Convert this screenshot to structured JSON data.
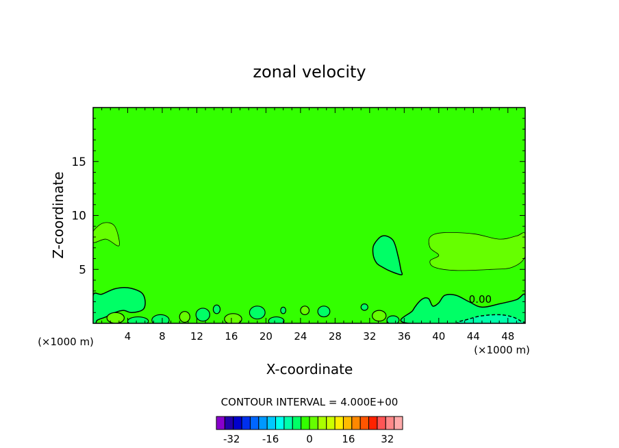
{
  "chart_data": {
    "type": "heatmap",
    "title": "zonal velocity",
    "xlabel": "X-coordinate",
    "ylabel": "Z-coordinate",
    "x_unit": "(×1000 m)",
    "xlim": [
      0,
      50
    ],
    "ylim": [
      0,
      20
    ],
    "x_ticks": [
      4,
      8,
      12,
      16,
      20,
      24,
      28,
      32,
      36,
      40,
      44,
      48
    ],
    "y_ticks": [
      5,
      10,
      15
    ],
    "contour_interval_label": "CONTOUR INTERVAL = 4.000E+00",
    "contour_labels": [
      "0.00"
    ],
    "colorbar": {
      "min": -36,
      "max": 36,
      "step": 4,
      "tick_values": [
        -32,
        -16,
        0,
        16,
        32
      ],
      "tick_labels": [
        "-32",
        "-16",
        "0",
        "16",
        "32"
      ],
      "colors": [
        "#8800cc",
        "#2200aa",
        "#0000cc",
        "#0030ee",
        "#0066ff",
        "#0099ff",
        "#00c8ff",
        "#00ffee",
        "#00ffaa",
        "#00ff66",
        "#33ff00",
        "#66ff00",
        "#aaff00",
        "#ccff00",
        "#ffee00",
        "#ffbb00",
        "#ff8800",
        "#ff5500",
        "#ff2200",
        "#ff5555",
        "#ff8888",
        "#ffaaaa"
      ]
    },
    "background_value_range": [
      0,
      4
    ],
    "regions": [
      {
        "label": "positive 4-8",
        "range": [
          4,
          8
        ],
        "color": "#66ff00",
        "shape": [
          [
            0,
            8.5
          ],
          [
            1.2,
            9.3
          ],
          [
            2.5,
            9.0
          ],
          [
            3,
            7.2
          ],
          [
            1.5,
            7.8
          ],
          [
            0,
            7.5
          ]
        ]
      },
      {
        "label": "positive 4-8",
        "range": [
          4,
          8
        ],
        "color": "#66ff00",
        "shape": [
          [
            39,
            8.0
          ],
          [
            40.5,
            8.4
          ],
          [
            44,
            8.3
          ],
          [
            47,
            7.8
          ],
          [
            49,
            8.1
          ],
          [
            50,
            8.3
          ],
          [
            50,
            6.2
          ],
          [
            48.5,
            5.2
          ],
          [
            46,
            5.0
          ],
          [
            42,
            4.9
          ],
          [
            39.5,
            5.2
          ],
          [
            39,
            5.8
          ],
          [
            40,
            6.3
          ],
          [
            39,
            7.0
          ]
        ]
      },
      {
        "label": "negative -4-0",
        "range": [
          -4,
          0
        ],
        "color": "#00ff66",
        "shape": [
          [
            32.5,
            7.3
          ],
          [
            33.5,
            8.1
          ],
          [
            34.7,
            7.7
          ],
          [
            35.3,
            6.2
          ],
          [
            35.6,
            5.0
          ],
          [
            35.7,
            4.5
          ],
          [
            34.5,
            4.8
          ],
          [
            33.5,
            5.2
          ],
          [
            32.8,
            5.6
          ],
          [
            32.4,
            6.4
          ]
        ]
      },
      {
        "label": "negative -4-0",
        "range": [
          -4,
          0
        ],
        "color": "#00ff66",
        "shape": [
          [
            0,
            0
          ],
          [
            0,
            2.6
          ],
          [
            1,
            2.7
          ],
          [
            2.5,
            3.2
          ],
          [
            4,
            3.3
          ],
          [
            5.5,
            2.9
          ],
          [
            6,
            2.2
          ],
          [
            5.8,
            1.3
          ],
          [
            4.5,
            1.0
          ],
          [
            3.5,
            1.2
          ],
          [
            2.5,
            1.0
          ],
          [
            1.5,
            0.6
          ],
          [
            0.5,
            0.3
          ],
          [
            0.3,
            0
          ]
        ]
      },
      {
        "label": "negative -4-0",
        "range": [
          -4,
          0
        ],
        "color": "#00ff66",
        "shape": [
          [
            36.5,
            0
          ],
          [
            37,
            1.2
          ],
          [
            38,
            2.2
          ],
          [
            38.8,
            2.3
          ],
          [
            39.3,
            1.6
          ],
          [
            40,
            1.9
          ],
          [
            40.7,
            2.6
          ],
          [
            42,
            2.6
          ],
          [
            43.5,
            2.0
          ],
          [
            45,
            1.5
          ],
          [
            47,
            1.8
          ],
          [
            49,
            2.2
          ],
          [
            50,
            2.6
          ],
          [
            50,
            0
          ]
        ]
      },
      {
        "label": "negative -8--4",
        "range": [
          -8,
          -4
        ],
        "color": "#00ffaa",
        "shape": [
          [
            42.5,
            0
          ],
          [
            43.5,
            0.4
          ],
          [
            45,
            0.7
          ],
          [
            47,
            0.8
          ],
          [
            48.5,
            0.6
          ],
          [
            49.5,
            0.2
          ],
          [
            49.6,
            0
          ]
        ]
      }
    ]
  }
}
